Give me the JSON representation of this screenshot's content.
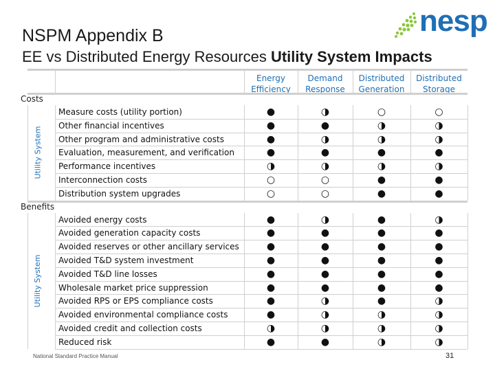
{
  "header": {
    "title": "NSPM Appendix B",
    "subtitle": "EE vs Distributed Energy Resources",
    "subtitle_bold": "Utility System Impacts",
    "logo": "nesp"
  },
  "table": {
    "columns": [
      "Energy Efficiency",
      "Demand Response",
      "Distributed Generation",
      "Distributed Storage"
    ],
    "sections": [
      {
        "name": "Costs",
        "group": "Utility System",
        "rows": [
          {
            "label": "Measure costs (utility portion)",
            "ratings": [
              "●",
              "◑",
              "○",
              "○"
            ]
          },
          {
            "label": "Other financial incentives",
            "ratings": [
              "●",
              "●",
              "◑",
              "◑"
            ]
          },
          {
            "label": "Other program and administrative costs",
            "ratings": [
              "●",
              "◑",
              "◑",
              "◑"
            ]
          },
          {
            "label": "Evaluation, measurement, and verification",
            "ratings": [
              "●",
              "●",
              "●",
              "●"
            ]
          },
          {
            "label": "Performance incentives",
            "ratings": [
              "◑",
              "◑",
              "◑",
              "◑"
            ]
          },
          {
            "label": "Interconnection costs",
            "ratings": [
              "○",
              "○",
              "●",
              "●"
            ]
          },
          {
            "label": "Distribution system upgrades",
            "ratings": [
              "○",
              "○",
              "●",
              "●"
            ]
          }
        ]
      },
      {
        "name": "Benefits",
        "group": "Utility System",
        "rows": [
          {
            "label": "Avoided energy costs",
            "ratings": [
              "●",
              "◑",
              "●",
              "◑"
            ]
          },
          {
            "label": "Avoided generation capacity costs",
            "ratings": [
              "●",
              "●",
              "●",
              "●"
            ]
          },
          {
            "label": "Avoided reserves or other ancillary services",
            "ratings": [
              "●",
              "●",
              "●",
              "●"
            ]
          },
          {
            "label": "Avoided T&D system investment",
            "ratings": [
              "●",
              "●",
              "●",
              "●"
            ]
          },
          {
            "label": "Avoided T&D line losses",
            "ratings": [
              "●",
              "●",
              "●",
              "●"
            ]
          },
          {
            "label": "Wholesale market price suppression",
            "ratings": [
              "●",
              "●",
              "●",
              "●"
            ]
          },
          {
            "label": "Avoided RPS or EPS compliance costs",
            "ratings": [
              "●",
              "◑",
              "●",
              "◑"
            ]
          },
          {
            "label": "Avoided environmental compliance costs",
            "ratings": [
              "●",
              "◑",
              "◑",
              "◑"
            ]
          },
          {
            "label": "Avoided credit and collection costs",
            "ratings": [
              "◑",
              "◑",
              "◑",
              "◑"
            ]
          },
          {
            "label": "Reduced risk",
            "ratings": [
              "●",
              "●",
              "◑",
              "◑"
            ]
          }
        ]
      }
    ]
  },
  "footer": {
    "source": "National Standard Practice Manual",
    "page": 31
  }
}
